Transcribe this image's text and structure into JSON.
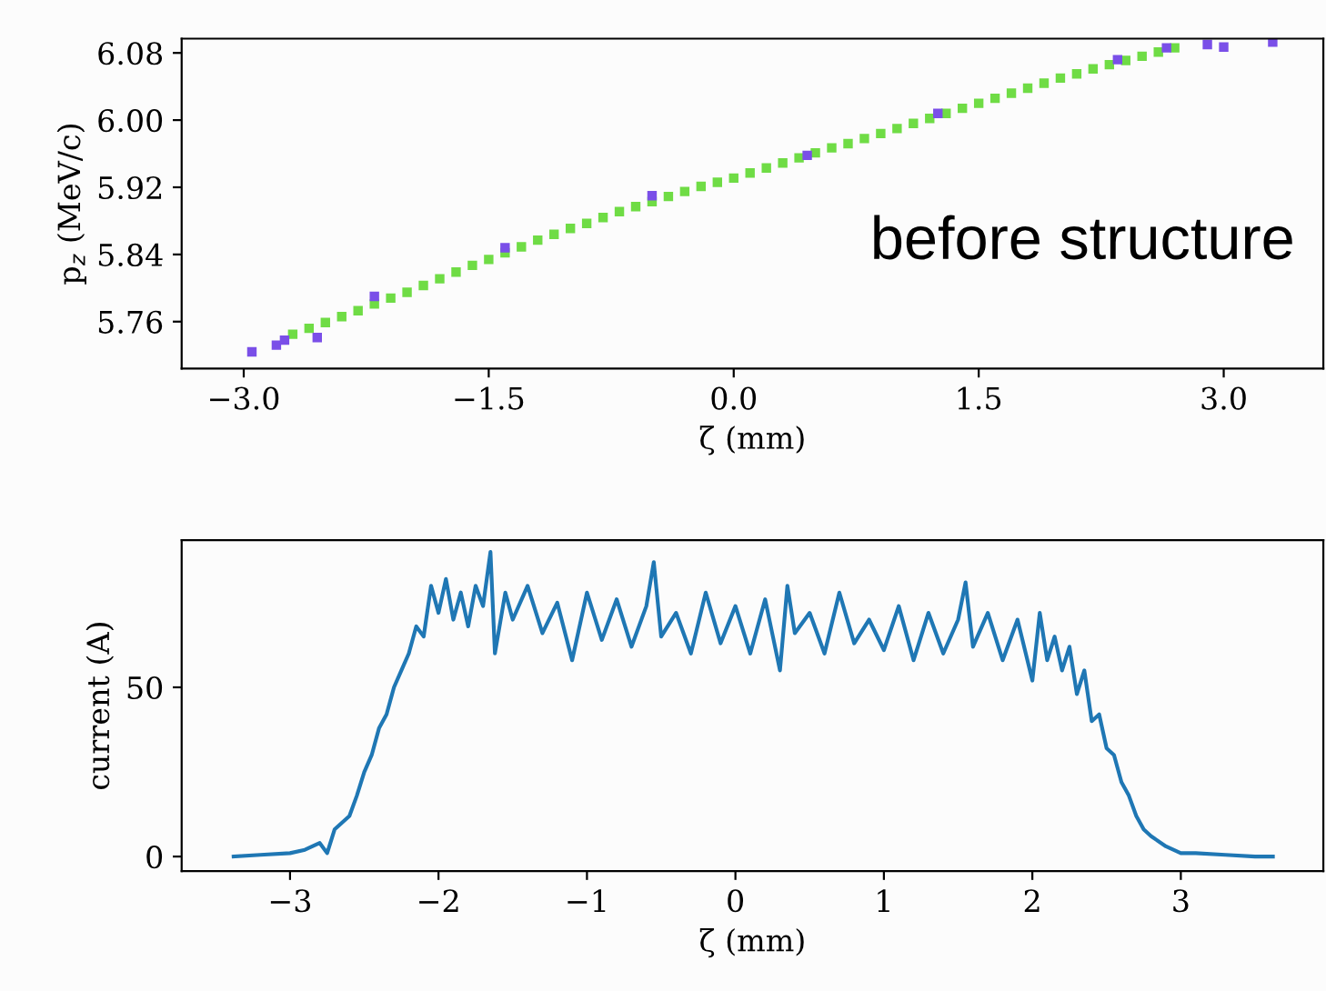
{
  "chart_data": [
    {
      "type": "scatter",
      "xlabel": "ζ (mm)",
      "ylabel": "p$_{z}$ (MeV/c)",
      "annotations": [
        "before structure"
      ],
      "marker": "square",
      "xlim": [
        -3.38,
        3.61
      ],
      "ylim": [
        5.704,
        6.097
      ],
      "xticks": [
        {
          "value": -3.0,
          "label": "−3.0"
        },
        {
          "value": -1.5,
          "label": "−1.5"
        },
        {
          "value": 0.0,
          "label": "0.0"
        },
        {
          "value": 1.5,
          "label": "1.5"
        },
        {
          "value": 3.0,
          "label": "3.0"
        }
      ],
      "yticks": [
        {
          "value": 5.76,
          "label": "5.76"
        },
        {
          "value": 5.84,
          "label": "5.84"
        },
        {
          "value": 5.92,
          "label": "5.92"
        },
        {
          "value": 6.0,
          "label": "6.00"
        },
        {
          "value": 6.08,
          "label": "6.08"
        }
      ],
      "series": [
        {
          "color": "#6fdc45",
          "x": [
            -2.7,
            -2.6,
            -2.5,
            -2.4,
            -2.3,
            -2.2,
            -2.1,
            -2.0,
            -1.9,
            -1.8,
            -1.7,
            -1.6,
            -1.5,
            -1.4,
            -1.3,
            -1.2,
            -1.1,
            -1.0,
            -0.9,
            -0.8,
            -0.7,
            -0.6,
            -0.5,
            -0.4,
            -0.3,
            -0.2,
            -0.1,
            0.0,
            0.1,
            0.2,
            0.3,
            0.4,
            0.5,
            0.6,
            0.7,
            0.8,
            0.9,
            1.0,
            1.1,
            1.2,
            1.3,
            1.4,
            1.5,
            1.6,
            1.7,
            1.8,
            1.9,
            2.0,
            2.1,
            2.2,
            2.3,
            2.4,
            2.5,
            2.6,
            2.7
          ],
          "values": [
            5.745,
            5.752,
            5.759,
            5.766,
            5.773,
            5.781,
            5.788,
            5.795,
            5.803,
            5.811,
            5.819,
            5.827,
            5.834,
            5.842,
            5.849,
            5.857,
            5.864,
            5.871,
            5.877,
            5.884,
            5.891,
            5.897,
            5.903,
            5.909,
            5.915,
            5.921,
            5.926,
            5.931,
            5.937,
            5.943,
            5.949,
            5.955,
            5.961,
            5.967,
            5.972,
            5.978,
            5.984,
            5.99,
            5.996,
            6.002,
            6.008,
            6.014,
            6.02,
            6.026,
            6.032,
            6.038,
            6.044,
            6.05,
            6.055,
            6.061,
            6.066,
            6.071,
            6.076,
            6.081,
            6.086
          ]
        },
        {
          "color": "#7a4fe8",
          "x": [
            -2.95,
            -2.8,
            -2.75,
            -2.55,
            -2.2,
            -1.4,
            -0.5,
            0.45,
            1.25,
            2.35,
            2.65,
            2.9,
            3.0,
            3.3
          ],
          "values": [
            5.724,
            5.732,
            5.738,
            5.741,
            5.79,
            5.848,
            5.91,
            5.958,
            6.008,
            6.072,
            6.086,
            6.09,
            6.087,
            6.093
          ]
        }
      ]
    },
    {
      "type": "line",
      "xlabel": "ζ (mm)",
      "ylabel": "current (A)",
      "marker": "none",
      "line_style": "solid",
      "xlim": [
        -3.73,
        3.96
      ],
      "ylim": [
        -4.3,
        93.5
      ],
      "xticks": [
        {
          "value": -3,
          "label": "−3"
        },
        {
          "value": -2,
          "label": "−2"
        },
        {
          "value": -1,
          "label": "−1"
        },
        0,
        1,
        2,
        3
      ],
      "yticks": [
        0,
        50
      ],
      "series": [
        {
          "color": "#1f77b4",
          "x": [
            -3.38,
            -3.2,
            -3.0,
            -2.9,
            -2.8,
            -2.75,
            -2.7,
            -2.6,
            -2.55,
            -2.5,
            -2.45,
            -2.4,
            -2.35,
            -2.3,
            -2.25,
            -2.2,
            -2.15,
            -2.1,
            -2.05,
            -2.0,
            -1.95,
            -1.9,
            -1.85,
            -1.8,
            -1.75,
            -1.7,
            -1.65,
            -1.62,
            -1.55,
            -1.5,
            -1.4,
            -1.3,
            -1.2,
            -1.1,
            -1.0,
            -0.9,
            -0.8,
            -0.7,
            -0.6,
            -0.55,
            -0.5,
            -0.4,
            -0.3,
            -0.2,
            -0.1,
            0.0,
            0.1,
            0.2,
            0.3,
            0.35,
            0.4,
            0.5,
            0.6,
            0.7,
            0.8,
            0.9,
            1.0,
            1.1,
            1.2,
            1.3,
            1.4,
            1.5,
            1.55,
            1.6,
            1.7,
            1.8,
            1.9,
            2.0,
            2.05,
            2.1,
            2.15,
            2.2,
            2.25,
            2.3,
            2.35,
            2.4,
            2.45,
            2.5,
            2.55,
            2.6,
            2.65,
            2.7,
            2.75,
            2.8,
            2.9,
            3.0,
            3.1,
            3.3,
            3.5,
            3.62
          ],
          "values": [
            0,
            0.5,
            1,
            2,
            4,
            1,
            8,
            12,
            18,
            25,
            30,
            38,
            42,
            50,
            55,
            60,
            68,
            65,
            80,
            72,
            82,
            70,
            78,
            68,
            80,
            74,
            90,
            60,
            78,
            70,
            80,
            66,
            75,
            58,
            78,
            64,
            76,
            62,
            74,
            87,
            65,
            72,
            60,
            78,
            63,
            74,
            60,
            76,
            55,
            80,
            66,
            72,
            60,
            78,
            63,
            70,
            61,
            74,
            58,
            72,
            60,
            70,
            81,
            62,
            72,
            58,
            70,
            52,
            72,
            58,
            65,
            55,
            62,
            48,
            55,
            40,
            42,
            32,
            30,
            22,
            18,
            12,
            8,
            6,
            3,
            1,
            1,
            0.5,
            0,
            0
          ]
        }
      ]
    }
  ]
}
